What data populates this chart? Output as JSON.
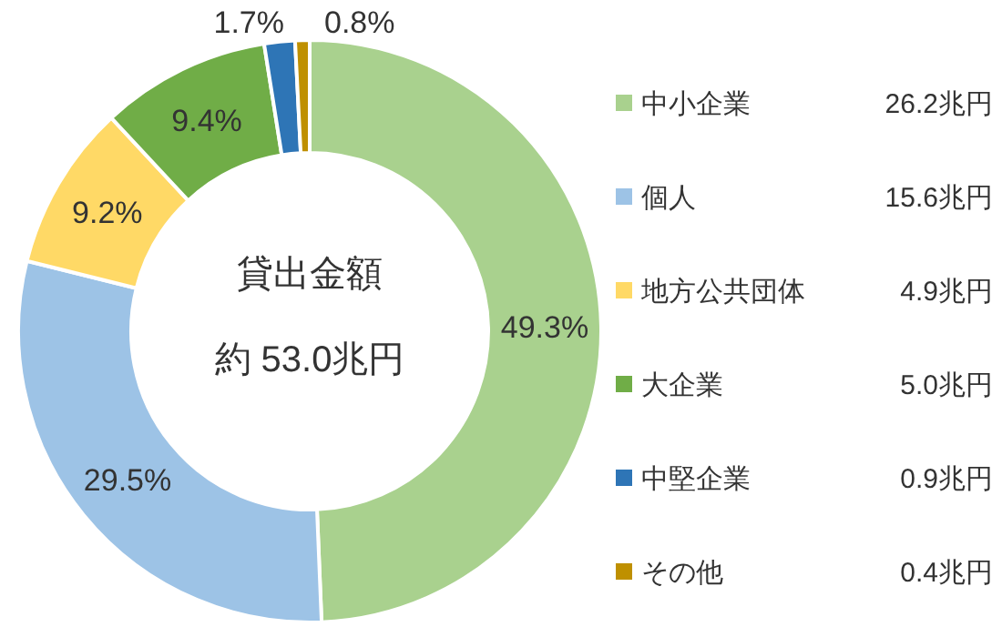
{
  "chart_data": {
    "type": "donut",
    "title": "貸出金額",
    "subtitle": "約 53.0兆円",
    "categories": [
      "中小企業",
      "個人",
      "地方公共団体",
      "大企業",
      "中堅企業",
      "その他"
    ],
    "values": [
      49.3,
      29.5,
      9.2,
      9.4,
      1.7,
      0.8
    ],
    "colors": [
      "#a9d18e",
      "#9dc3e6",
      "#ffd966",
      "#70ad47",
      "#2e75b6",
      "#bf9000"
    ],
    "value_labels": [
      "49.3%",
      "29.5%",
      "9.2%",
      "9.4%",
      "1.7%",
      "0.8%"
    ],
    "annotations": [
      "26.2兆円",
      "15.6兆円",
      "4.9兆円",
      "5.0兆円",
      "0.9兆円",
      "0.4兆円"
    ],
    "legend": "right"
  }
}
